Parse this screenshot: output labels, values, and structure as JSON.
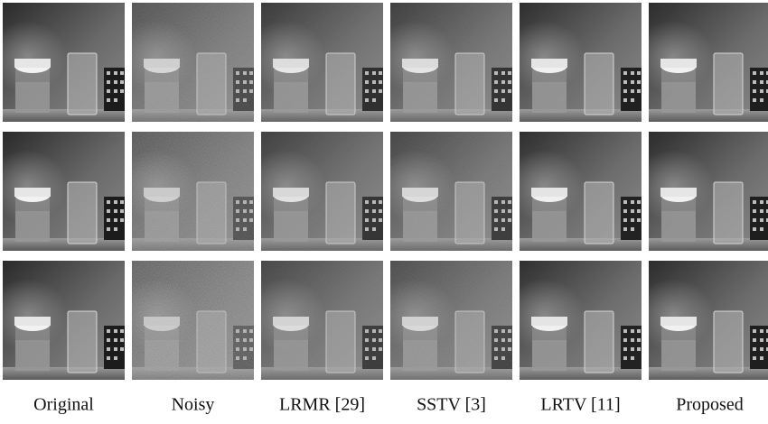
{
  "column_labels": [
    "Original",
    "Noisy",
    "LRMR [29]",
    "SSTV [3]",
    "LRTV [11]",
    "Proposed"
  ]
}
